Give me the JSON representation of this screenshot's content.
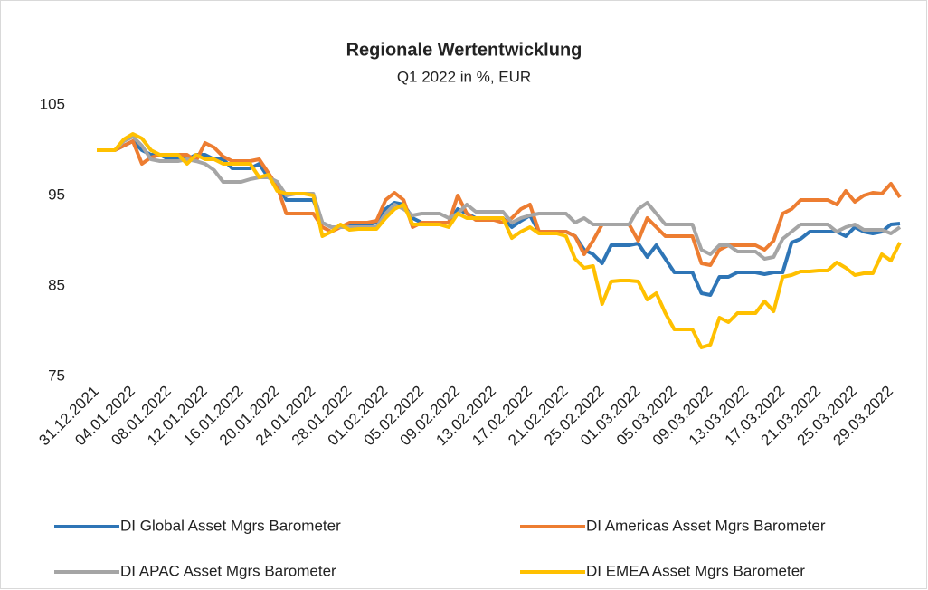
{
  "chart_data": {
    "type": "line",
    "title": "Regionale Wertentwicklung",
    "subtitle": "Q1 2022 in %, EUR",
    "categories": [
      "31.12.2021",
      null,
      null,
      null,
      "04.01.2022",
      null,
      null,
      null,
      "08.01.2022",
      null,
      null,
      null,
      "12.01.2022",
      null,
      null,
      null,
      "16.01.2022",
      null,
      null,
      null,
      "20.01.2022",
      null,
      null,
      null,
      "24.01.2022",
      null,
      null,
      null,
      "28.01.2022",
      null,
      null,
      null,
      "01.02.2022",
      null,
      null,
      null,
      "05.02.2022",
      null,
      null,
      null,
      "09.02.2022",
      null,
      null,
      null,
      "13.02.2022",
      null,
      null,
      null,
      "17.02.2022",
      null,
      null,
      null,
      "21.02.2022",
      null,
      null,
      null,
      "25.02.2022",
      null,
      null,
      null,
      "01.03.2022",
      null,
      null,
      null,
      "05.03.2022",
      null,
      null,
      null,
      "09.03.2022",
      null,
      null,
      null,
      "13.03.2022",
      null,
      null,
      null,
      "17.03.2022",
      null,
      null,
      null,
      "21.03.2022",
      null,
      null,
      null,
      "25.03.2022",
      null,
      null,
      null,
      "29.03.2022",
      null
    ],
    "series": [
      {
        "name": "DI Global Asset Mgrs Barometer",
        "color": "#2e75b6",
        "values": [
          100,
          100,
          100,
          100.5,
          101,
          100,
          99.5,
          99.5,
          99,
          99,
          99,
          99.5,
          99.5,
          99,
          99,
          98,
          98,
          98,
          98.5,
          97,
          96.5,
          94.5,
          94.5,
          94.5,
          94.5,
          92,
          91.5,
          91.5,
          91.8,
          91.8,
          91.8,
          92,
          93.5,
          94.2,
          94,
          92.5,
          92,
          92,
          92,
          92,
          93.5,
          93,
          92.5,
          92.5,
          92.5,
          92.5,
          91.5,
          92.2,
          92.8,
          91,
          91,
          91,
          91,
          90.5,
          89,
          88.5,
          87.5,
          89.5,
          89.5,
          89.5,
          89.7,
          88.2,
          89.5,
          88,
          86.5,
          86.5,
          86.5,
          84.2,
          84,
          86,
          86,
          86.5,
          86.5,
          86.5,
          86.3,
          86.5,
          86.5,
          89.8,
          90.2,
          91,
          91,
          91,
          91,
          90.5,
          91.5,
          91,
          90.8,
          91,
          91.8,
          91.9
        ]
      },
      {
        "name": "DI Americas Asset Mgrs Barometer",
        "color": "#ed7d31",
        "values": [
          100,
          100,
          100,
          100.5,
          101,
          98.5,
          99.2,
          99.5,
          99.5,
          99.5,
          99.5,
          98.8,
          100.8,
          100.3,
          99.3,
          98.8,
          98.8,
          98.8,
          99,
          97.5,
          96,
          93,
          93,
          93,
          93,
          91.5,
          91,
          91.5,
          92,
          92,
          92,
          92.2,
          94.5,
          95.3,
          94.5,
          91.5,
          92,
          92,
          92,
          92,
          95,
          93,
          92.3,
          92.3,
          92.3,
          92,
          92.5,
          93.5,
          94,
          91,
          91,
          91,
          91,
          90.5,
          88.5,
          90,
          91.8,
          91.8,
          91.8,
          91.8,
          90,
          92.5,
          91.5,
          90.5,
          90.5,
          90.5,
          90.5,
          87.5,
          87.3,
          89,
          89.5,
          89.5,
          89.5,
          89.5,
          89,
          90,
          93,
          93.5,
          94.5,
          94.5,
          94.5,
          94.5,
          94,
          95.5,
          94.3,
          95,
          95.3,
          95.2,
          96.3,
          94.8
        ]
      },
      {
        "name": "DI APAC Asset Mgrs Barometer",
        "color": "#a5a5a5",
        "values": [
          100,
          100,
          100,
          101,
          101.5,
          100.5,
          99,
          98.8,
          98.8,
          98.8,
          99,
          98.8,
          98.5,
          97.8,
          96.5,
          96.5,
          96.5,
          96.8,
          97,
          97,
          96.5,
          95,
          95.2,
          95.2,
          95.2,
          92,
          91.5,
          91.5,
          91.5,
          91.5,
          91.5,
          91.5,
          93,
          94,
          93.5,
          92.8,
          93,
          93,
          93,
          92.5,
          93,
          94,
          93.2,
          93.2,
          93.2,
          93.2,
          92,
          92.5,
          92.8,
          93,
          93,
          93,
          93,
          92,
          92.5,
          91.8,
          91.8,
          91.8,
          91.8,
          91.8,
          93.5,
          94.2,
          93,
          91.8,
          91.8,
          91.8,
          91.8,
          89,
          88.5,
          89.5,
          89.5,
          88.8,
          88.8,
          88.8,
          88,
          88.2,
          90.2,
          91,
          91.8,
          91.8,
          91.8,
          91.8,
          91,
          91.5,
          91.8,
          91.2,
          91.2,
          91.2,
          90.8,
          91.5
        ]
      },
      {
        "name": "DI EMEA Asset Mgrs Barometer",
        "color": "#ffc000",
        "values": [
          100,
          100,
          100,
          101.2,
          101.8,
          101.3,
          100,
          99.5,
          99.5,
          99.5,
          98.5,
          99.5,
          99,
          99,
          98.5,
          98.5,
          98.5,
          98.5,
          97,
          97.3,
          95.5,
          95.2,
          95.2,
          95.2,
          95,
          90.5,
          91,
          91.8,
          91.2,
          91.3,
          91.3,
          91.3,
          92.5,
          93.5,
          94,
          91.8,
          91.8,
          91.8,
          91.8,
          91.5,
          93,
          92.5,
          92.5,
          92.5,
          92.5,
          92.5,
          90.3,
          91,
          91.5,
          90.8,
          90.8,
          90.8,
          90.5,
          88,
          87,
          87.2,
          83,
          85.5,
          85.6,
          85.6,
          85.5,
          83.5,
          84.2,
          82,
          80.2,
          80.2,
          80.2,
          78.2,
          78.5,
          81.5,
          81,
          82,
          82,
          82,
          83.3,
          82.2,
          86,
          86.2,
          86.6,
          86.6,
          86.7,
          86.7,
          87.6,
          87,
          86.2,
          86.4,
          86.4,
          88.5,
          87.8,
          89.8
        ]
      }
    ],
    "ylim": [
      75,
      105
    ],
    "yticks": [
      75,
      85,
      95,
      105
    ],
    "grid": false,
    "legend": "bottom"
  }
}
